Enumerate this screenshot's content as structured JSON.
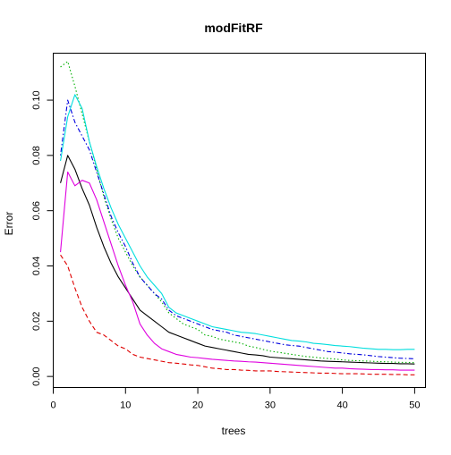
{
  "chart_data": {
    "type": "line",
    "title": "modFitRF",
    "xlabel": "trees",
    "ylabel": "Error",
    "xlim": [
      0,
      51.5
    ],
    "ylim": [
      -0.004,
      0.117
    ],
    "grid": false,
    "legend": "none",
    "x_ticks": [
      0,
      10,
      20,
      30,
      40,
      50
    ],
    "x_tick_labels": [
      "0",
      "10",
      "20",
      "30",
      "40",
      "50"
    ],
    "y_ticks": [
      0.0,
      0.02,
      0.04,
      0.06,
      0.08,
      0.1
    ],
    "y_tick_labels": [
      "0.00",
      "0.02",
      "0.04",
      "0.06",
      "0.08",
      "0.10"
    ],
    "x": [
      1,
      2,
      3,
      4,
      5,
      6,
      7,
      8,
      9,
      10,
      11,
      12,
      13,
      14,
      15,
      16,
      17,
      18,
      19,
      20,
      21,
      22,
      23,
      24,
      25,
      26,
      27,
      28,
      29,
      30,
      31,
      32,
      33,
      34,
      35,
      36,
      37,
      38,
      39,
      40,
      41,
      42,
      43,
      44,
      45,
      46,
      47,
      48,
      49,
      50
    ],
    "series": [
      {
        "color": "#000000",
        "dash": "solid",
        "values": [
          0.07,
          0.08,
          0.075,
          0.068,
          0.062,
          0.054,
          0.047,
          0.041,
          0.036,
          0.032,
          0.028,
          0.024,
          0.022,
          0.02,
          0.018,
          0.016,
          0.015,
          0.014,
          0.013,
          0.012,
          0.011,
          0.0105,
          0.01,
          0.0095,
          0.009,
          0.0085,
          0.008,
          0.0078,
          0.0075,
          0.007,
          0.0068,
          0.0066,
          0.0064,
          0.0062,
          0.006,
          0.0058,
          0.0056,
          0.0055,
          0.0054,
          0.0053,
          0.0052,
          0.0051,
          0.005,
          0.0049,
          0.0048,
          0.0047,
          0.0047,
          0.0046,
          0.0046,
          0.0045
        ]
      },
      {
        "color": "#df0000",
        "dash": "dashed",
        "values": [
          0.044,
          0.04,
          0.032,
          0.025,
          0.02,
          0.016,
          0.015,
          0.013,
          0.011,
          0.01,
          0.008,
          0.007,
          0.0065,
          0.006,
          0.0055,
          0.005,
          0.0048,
          0.0045,
          0.0042,
          0.004,
          0.0035,
          0.003,
          0.0028,
          0.0025,
          0.0025,
          0.0023,
          0.0022,
          0.002,
          0.002,
          0.002,
          0.0018,
          0.0017,
          0.0016,
          0.0015,
          0.0014,
          0.0013,
          0.0012,
          0.0012,
          0.0011,
          0.001,
          0.001,
          0.001,
          0.0009,
          0.0008,
          0.0008,
          0.0008,
          0.0007,
          0.0007,
          0.0006,
          0.0006
        ]
      },
      {
        "color": "#00b000",
        "dash": "dotted",
        "values": [
          0.112,
          0.114,
          0.105,
          0.095,
          0.085,
          0.075,
          0.065,
          0.057,
          0.05,
          0.045,
          0.04,
          0.036,
          0.033,
          0.03,
          0.027,
          0.023,
          0.021,
          0.019,
          0.018,
          0.017,
          0.015,
          0.0145,
          0.0135,
          0.013,
          0.0125,
          0.012,
          0.011,
          0.0105,
          0.0098,
          0.0092,
          0.0088,
          0.0084,
          0.008,
          0.0076,
          0.0072,
          0.007,
          0.0067,
          0.0065,
          0.0063,
          0.006,
          0.0058,
          0.0057,
          0.0056,
          0.0055,
          0.0054,
          0.0053,
          0.0052,
          0.0051,
          0.0051,
          0.005
        ]
      },
      {
        "color": "#0000df",
        "dash": "dotdash",
        "values": [
          0.08,
          0.1,
          0.092,
          0.087,
          0.082,
          0.074,
          0.066,
          0.058,
          0.052,
          0.047,
          0.041,
          0.036,
          0.033,
          0.03,
          0.028,
          0.024,
          0.022,
          0.021,
          0.02,
          0.019,
          0.018,
          0.017,
          0.0165,
          0.016,
          0.015,
          0.0145,
          0.014,
          0.0135,
          0.013,
          0.0125,
          0.012,
          0.0115,
          0.0112,
          0.011,
          0.0105,
          0.01,
          0.0095,
          0.009,
          0.0088,
          0.0085,
          0.0082,
          0.008,
          0.0078,
          0.0075,
          0.0072,
          0.007,
          0.0068,
          0.0066,
          0.0065,
          0.0064
        ]
      },
      {
        "color": "#00dede",
        "dash": "solid",
        "values": [
          0.078,
          0.094,
          0.102,
          0.097,
          0.085,
          0.076,
          0.068,
          0.061,
          0.055,
          0.05,
          0.045,
          0.04,
          0.036,
          0.033,
          0.03,
          0.025,
          0.023,
          0.022,
          0.021,
          0.02,
          0.019,
          0.018,
          0.0175,
          0.017,
          0.0165,
          0.016,
          0.0158,
          0.0155,
          0.015,
          0.0145,
          0.014,
          0.0135,
          0.013,
          0.0128,
          0.0125,
          0.012,
          0.0118,
          0.0115,
          0.0112,
          0.011,
          0.0108,
          0.0105,
          0.0102,
          0.01,
          0.0098,
          0.0098,
          0.0097,
          0.0097,
          0.0098,
          0.0098
        ]
      },
      {
        "color": "#df00df",
        "dash": "solid",
        "values": [
          0.045,
          0.074,
          0.069,
          0.071,
          0.07,
          0.064,
          0.056,
          0.048,
          0.04,
          0.033,
          0.027,
          0.019,
          0.015,
          0.012,
          0.01,
          0.009,
          0.008,
          0.0075,
          0.007,
          0.0068,
          0.0065,
          0.0062,
          0.006,
          0.0058,
          0.0056,
          0.0055,
          0.0053,
          0.0052,
          0.005,
          0.0048,
          0.0046,
          0.0044,
          0.0042,
          0.004,
          0.0038,
          0.0036,
          0.0034,
          0.0032,
          0.003,
          0.003,
          0.0028,
          0.0027,
          0.0026,
          0.0025,
          0.0025,
          0.0024,
          0.0024,
          0.0023,
          0.0023,
          0.0023
        ]
      }
    ]
  }
}
